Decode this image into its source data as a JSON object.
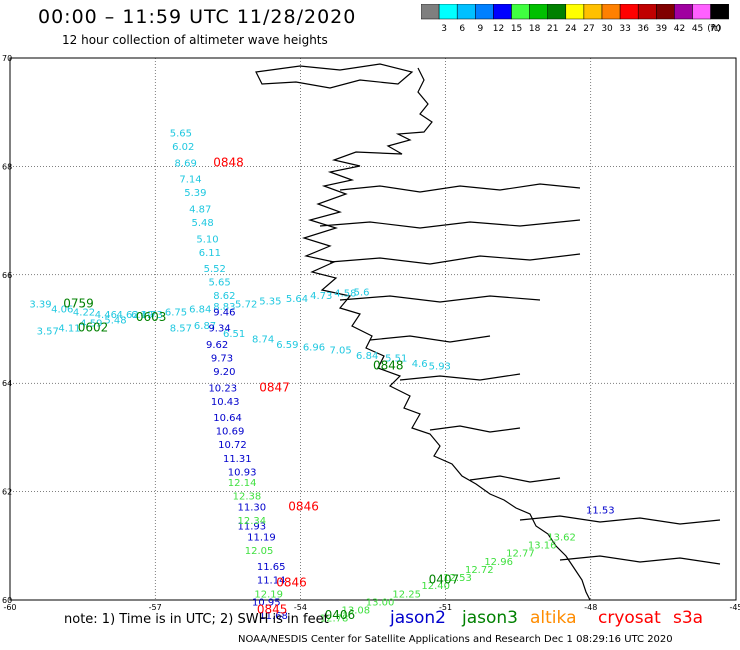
{
  "header": {
    "title": "00:00 – 11:59 UTC 11/28/2020",
    "subtitle": "12 hour collection of altimeter wave heights"
  },
  "colorbar": {
    "unit": "(ft)",
    "bins": [
      {
        "label": "",
        "color": "#7f7f7f"
      },
      {
        "label": "3",
        "color": "#00ffff"
      },
      {
        "label": "6",
        "color": "#00c0ff"
      },
      {
        "label": "9",
        "color": "#0080ff"
      },
      {
        "label": "12",
        "color": "#0000ff"
      },
      {
        "label": "15",
        "color": "#40ff40"
      },
      {
        "label": "18",
        "color": "#00c000"
      },
      {
        "label": "21",
        "color": "#008000"
      },
      {
        "label": "24",
        "color": "#ffff00"
      },
      {
        "label": "27",
        "color": "#ffc000"
      },
      {
        "label": "30",
        "color": "#ff8000"
      },
      {
        "label": "33",
        "color": "#ff0000"
      },
      {
        "label": "36",
        "color": "#c00000"
      },
      {
        "label": "39",
        "color": "#800000"
      },
      {
        "label": "42",
        "color": "#a000a0"
      },
      {
        "label": "45",
        "color": "#ff60ff"
      },
      {
        "label": "70",
        "color": "#000000"
      }
    ]
  },
  "axes": {
    "lon_range": [
      -60,
      -45
    ],
    "lat_range": [
      60,
      70
    ],
    "lon_ticks": [
      "-60",
      "-57",
      "-54",
      "-51",
      "-48",
      "-45"
    ],
    "lat_ticks": [
      "70",
      "68",
      "66",
      "64",
      "62",
      "60"
    ]
  },
  "colors": {
    "jason2": "#0000cc",
    "jason3": "#008000",
    "altika": "#ff8c00",
    "cryosat": "#ff0000",
    "s3a": "#ff0000",
    "light_blue": "#20c8e0",
    "light_green": "#40e040",
    "mid_blue": "#0000cc"
  },
  "tracks": [
    {
      "color": "light_blue",
      "points": [
        {
          "lon": -56.7,
          "lat": 68.55,
          "value": "5.65"
        },
        {
          "lon": -56.65,
          "lat": 68.3,
          "value": "6.02"
        },
        {
          "lon": -56.6,
          "lat": 68.0,
          "value": "8.69"
        },
        {
          "lon": -56.5,
          "lat": 67.7,
          "value": "7.14"
        },
        {
          "lon": -56.4,
          "lat": 67.45,
          "value": "5.39"
        },
        {
          "lon": -56.3,
          "lat": 67.15,
          "value": "4.87"
        },
        {
          "lon": -56.25,
          "lat": 66.9,
          "value": "5.48"
        },
        {
          "lon": -56.15,
          "lat": 66.6,
          "value": "5.10"
        },
        {
          "lon": -56.1,
          "lat": 66.35,
          "value": "6.11"
        },
        {
          "lon": -56.0,
          "lat": 66.05,
          "value": "5.52"
        },
        {
          "lon": -55.9,
          "lat": 65.8,
          "value": "5.65"
        },
        {
          "lon": -55.8,
          "lat": 65.55,
          "value": "8.62"
        }
      ]
    },
    {
      "color": "light_blue",
      "points": [
        {
          "lon": -59.6,
          "lat": 65.4,
          "value": "3.39"
        },
        {
          "lon": -59.15,
          "lat": 65.3,
          "value": "4.06"
        },
        {
          "lon": -58.7,
          "lat": 65.25,
          "value": "4.22"
        },
        {
          "lon": -58.25,
          "lat": 65.2,
          "value": "4.46"
        },
        {
          "lon": -57.8,
          "lat": 65.2,
          "value": "4.62"
        },
        {
          "lon": -57.3,
          "lat": 65.2,
          "value": "4.73"
        },
        {
          "lon": -56.8,
          "lat": 65.25,
          "value": "6.75"
        },
        {
          "lon": -56.3,
          "lat": 65.3,
          "value": "6.84"
        },
        {
          "lon": -55.8,
          "lat": 65.35,
          "value": "8.83"
        },
        {
          "lon": -55.35,
          "lat": 65.4,
          "value": "5.72"
        },
        {
          "lon": -54.85,
          "lat": 65.45,
          "value": "5.35"
        },
        {
          "lon": -54.3,
          "lat": 65.5,
          "value": "5.64"
        },
        {
          "lon": -53.8,
          "lat": 65.55,
          "value": "4.73"
        },
        {
          "lon": -53.3,
          "lat": 65.6,
          "value": "4.58"
        },
        {
          "lon": -52.9,
          "lat": 65.62,
          "value": "5.6"
        }
      ]
    },
    {
      "color": "light_blue",
      "points": [
        {
          "lon": -59.45,
          "lat": 64.9,
          "value": "3.57"
        },
        {
          "lon": -59.0,
          "lat": 64.95,
          "value": "4.11"
        },
        {
          "lon": -58.55,
          "lat": 65.05,
          "value": "4.59"
        },
        {
          "lon": -58.05,
          "lat": 65.1,
          "value": "5.48"
        },
        {
          "lon": -57.5,
          "lat": 65.2,
          "value": "6.19"
        },
        {
          "lon": -56.7,
          "lat": 64.95,
          "value": "8.57"
        },
        {
          "lon": -56.2,
          "lat": 65.0,
          "value": "6.87"
        },
        {
          "lon": -55.6,
          "lat": 64.85,
          "value": "6.51"
        },
        {
          "lon": -55.0,
          "lat": 64.75,
          "value": "8.74"
        },
        {
          "lon": -54.5,
          "lat": 64.65,
          "value": "6.59"
        },
        {
          "lon": -53.95,
          "lat": 64.6,
          "value": "6.96"
        },
        {
          "lon": -53.4,
          "lat": 64.55,
          "value": "7.05"
        },
        {
          "lon": -52.85,
          "lat": 64.45,
          "value": "6.84"
        },
        {
          "lon": -52.25,
          "lat": 64.4,
          "value": "5.51"
        },
        {
          "lon": -51.7,
          "lat": 64.3,
          "value": "4.6"
        },
        {
          "lon": -51.35,
          "lat": 64.25,
          "value": "5.93"
        }
      ]
    },
    {
      "color": "mid_blue",
      "points": [
        {
          "lon": -55.8,
          "lat": 65.25,
          "value": "9.46"
        },
        {
          "lon": -55.9,
          "lat": 64.95,
          "value": "9.34"
        },
        {
          "lon": -55.95,
          "lat": 64.65,
          "value": "9.62"
        },
        {
          "lon": -55.85,
          "lat": 64.4,
          "value": "9.73"
        },
        {
          "lon": -55.8,
          "lat": 64.15,
          "value": "9.20"
        },
        {
          "lon": -55.9,
          "lat": 63.85,
          "value": "10.23"
        },
        {
          "lon": -55.85,
          "lat": 63.6,
          "value": "10.43"
        },
        {
          "lon": -55.8,
          "lat": 63.3,
          "value": "10.64"
        },
        {
          "lon": -55.75,
          "lat": 63.05,
          "value": "10.69"
        },
        {
          "lon": -55.7,
          "lat": 62.8,
          "value": "10.72"
        },
        {
          "lon": -55.6,
          "lat": 62.55,
          "value": "11.31"
        },
        {
          "lon": -55.5,
          "lat": 62.3,
          "value": "10.93"
        },
        {
          "lon": -55.3,
          "lat": 61.3,
          "value": "11.93"
        },
        {
          "lon": -55.3,
          "lat": 61.65,
          "value": "11.30"
        },
        {
          "lon": -55.1,
          "lat": 61.1,
          "value": "11.19"
        },
        {
          "lon": -54.9,
          "lat": 60.55,
          "value": "11.65"
        },
        {
          "lon": -54.9,
          "lat": 60.3,
          "value": "11.14"
        },
        {
          "lon": -55.0,
          "lat": 59.9,
          "value": "10.95"
        },
        {
          "lon": -54.85,
          "lat": 59.65,
          "value": "11.68"
        },
        {
          "lon": -48.1,
          "lat": 61.6,
          "value": "11.53"
        }
      ]
    },
    {
      "color": "light_green",
      "points": [
        {
          "lon": -55.5,
          "lat": 62.1,
          "value": "12.14"
        },
        {
          "lon": -55.4,
          "lat": 61.85,
          "value": "12.38"
        },
        {
          "lon": -55.3,
          "lat": 61.4,
          "value": "12.34"
        },
        {
          "lon": -55.15,
          "lat": 60.85,
          "value": "12.05"
        },
        {
          "lon": -54.95,
          "lat": 60.05,
          "value": "12.19"
        },
        {
          "lon": -53.6,
          "lat": 59.6,
          "value": "12.78"
        },
        {
          "lon": -53.15,
          "lat": 59.75,
          "value": "13.08"
        },
        {
          "lon": -52.65,
          "lat": 59.9,
          "value": "13.00"
        },
        {
          "lon": -52.1,
          "lat": 60.05,
          "value": "12.25"
        },
        {
          "lon": -51.5,
          "lat": 60.2,
          "value": "12.40"
        },
        {
          "lon": -51.05,
          "lat": 60.35,
          "value": "12.53"
        },
        {
          "lon": -50.6,
          "lat": 60.5,
          "value": "12.72"
        },
        {
          "lon": -50.2,
          "lat": 60.65,
          "value": "12.96"
        },
        {
          "lon": -49.75,
          "lat": 60.8,
          "value": "12.77"
        },
        {
          "lon": -49.3,
          "lat": 60.95,
          "value": "13.16"
        },
        {
          "lon": -48.9,
          "lat": 61.1,
          "value": "13.62"
        }
      ]
    }
  ],
  "time_labels": [
    {
      "text": "0848",
      "color": "cryosat",
      "lon": -55.8,
      "lat": 68.0
    },
    {
      "text": "0759",
      "color": "jason3",
      "lon": -58.9,
      "lat": 65.4
    },
    {
      "text": "0602",
      "color": "jason3",
      "lon": -58.6,
      "lat": 64.95
    },
    {
      "text": "0603",
      "color": "jason3",
      "lon": -57.4,
      "lat": 65.15
    },
    {
      "text": "0848",
      "color": "jason3",
      "lon": -52.5,
      "lat": 64.25
    },
    {
      "text": "0847",
      "color": "cryosat",
      "lon": -54.85,
      "lat": 63.85
    },
    {
      "text": "0846",
      "color": "cryosat",
      "lon": -54.25,
      "lat": 61.65
    },
    {
      "text": "0846",
      "color": "cryosat",
      "lon": -54.5,
      "lat": 60.25
    },
    {
      "text": "0845",
      "color": "cryosat",
      "lon": -54.9,
      "lat": 59.75
    },
    {
      "text": "0407",
      "color": "jason3",
      "lon": -51.35,
      "lat": 60.3
    },
    {
      "text": "0406",
      "color": "jason3",
      "lon": -53.5,
      "lat": 59.65
    }
  ],
  "footer": {
    "note": "note: 1) Time is in UTC; 2) SWH is in feet",
    "legend": [
      {
        "label": "jason2",
        "color": "jason2"
      },
      {
        "label": "jason3",
        "color": "jason3"
      },
      {
        "label": "altika",
        "color": "altika"
      },
      {
        "label": "cryosat",
        "color": "cryosat"
      },
      {
        "label": "s3a",
        "color": "s3a"
      }
    ],
    "credit": "NOAA/NESDIS Center for Satellite Applications and Research    Dec  1 08:29:16 UTC 2020"
  }
}
